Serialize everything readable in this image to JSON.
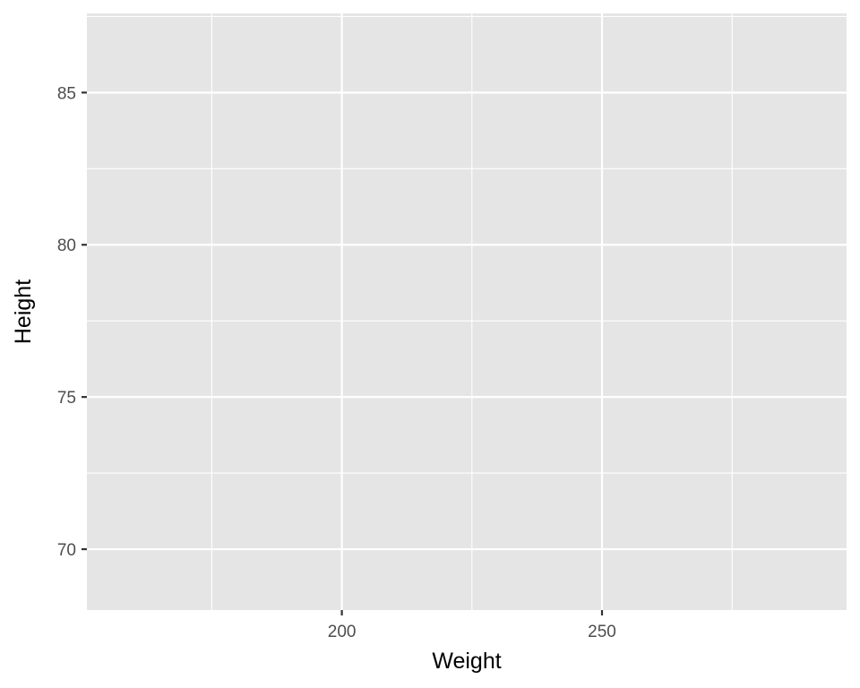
{
  "chart_data": {
    "type": "scatter",
    "title": "",
    "xlabel": "Weight",
    "ylabel": "Height",
    "xlim": [
      151,
      297
    ],
    "ylim": [
      68,
      87.6
    ],
    "x_ticks": [
      200,
      250
    ],
    "x_minor_ticks": [
      175,
      225,
      275
    ],
    "y_ticks": [
      70,
      75,
      80,
      85
    ],
    "y_minor_ticks": [
      72.5,
      77.5,
      82.5,
      87.5
    ],
    "grid": true,
    "points": [],
    "colors": {
      "panel": "#e5e5e5",
      "grid": "#ffffff",
      "tick_text": "#4d4d4d",
      "axis_title": "#000000"
    }
  }
}
